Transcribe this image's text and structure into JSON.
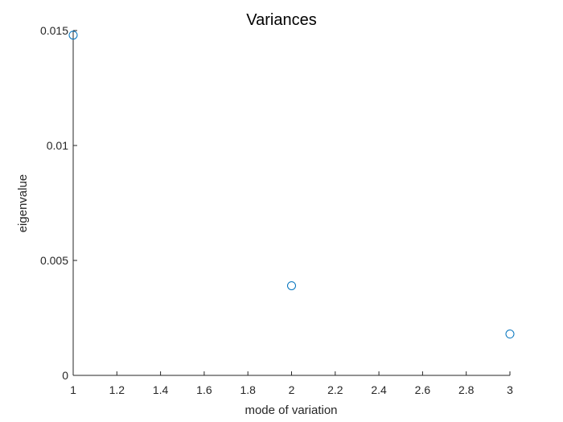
{
  "chart_data": {
    "type": "scatter",
    "title": "Variances",
    "xlabel": "mode of variation",
    "ylabel": "eigenvalue",
    "xlim": [
      1,
      3
    ],
    "ylim": [
      0,
      0.015
    ],
    "x_ticks": [
      "1",
      "1.2",
      "1.4",
      "1.6",
      "1.8",
      "2",
      "2.2",
      "2.4",
      "2.6",
      "2.8",
      "3"
    ],
    "y_ticks": [
      "0",
      "0.005",
      "0.01",
      "0.015"
    ],
    "grid": false,
    "legend": "none",
    "marker": "open-circle",
    "series": [
      {
        "color": "#0072BD",
        "x": [
          1,
          2,
          3
        ],
        "y": [
          0.0148,
          0.0039,
          0.0018
        ]
      }
    ]
  }
}
